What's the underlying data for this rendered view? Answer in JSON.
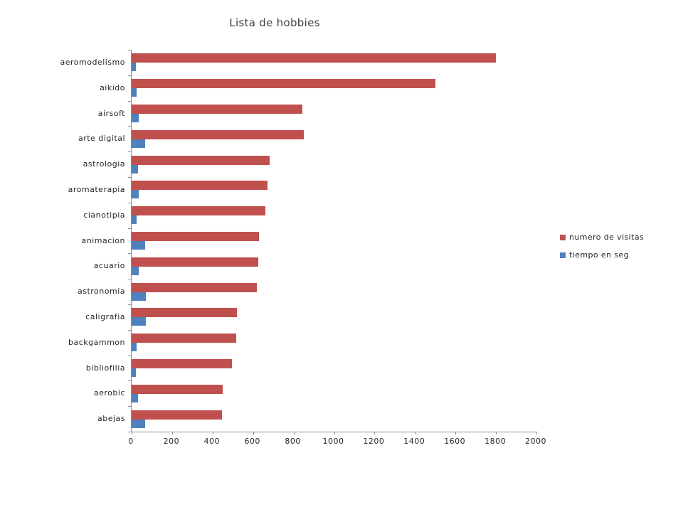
{
  "chart_data": {
    "type": "bar",
    "orientation": "horizontal",
    "title": "Lista de hobbies",
    "categories": [
      "aeromodelismo",
      "aikido",
      "airsoft",
      "arte digital",
      "astrologia",
      "aromaterapia",
      "cianotipia",
      "animacion",
      "acuario",
      "astronomia",
      "caligrafia",
      "backgammon",
      "bibliofilia",
      "aerobic",
      "abejas"
    ],
    "series": [
      {
        "name": "numero de visitas",
        "color": "#C0504D",
        "values": [
          1800,
          1500,
          845,
          850,
          680,
          670,
          660,
          630,
          625,
          620,
          520,
          515,
          495,
          450,
          445
        ]
      },
      {
        "name": "tiempo en seg",
        "color": "#4F81BD",
        "values": [
          20,
          25,
          35,
          65,
          30,
          35,
          25,
          65,
          35,
          70,
          70,
          25,
          20,
          30,
          65
        ]
      }
    ],
    "xlabel": "",
    "ylabel": "",
    "xlim": [
      0,
      2000
    ],
    "x_ticks": [
      0,
      200,
      400,
      600,
      800,
      1000,
      1200,
      1400,
      1600,
      1800,
      2000
    ],
    "legend_position": "right",
    "grid": false,
    "axis_color": "#8C8C8C",
    "text_color": "#262626",
    "background_color": "#FFFFFF"
  }
}
